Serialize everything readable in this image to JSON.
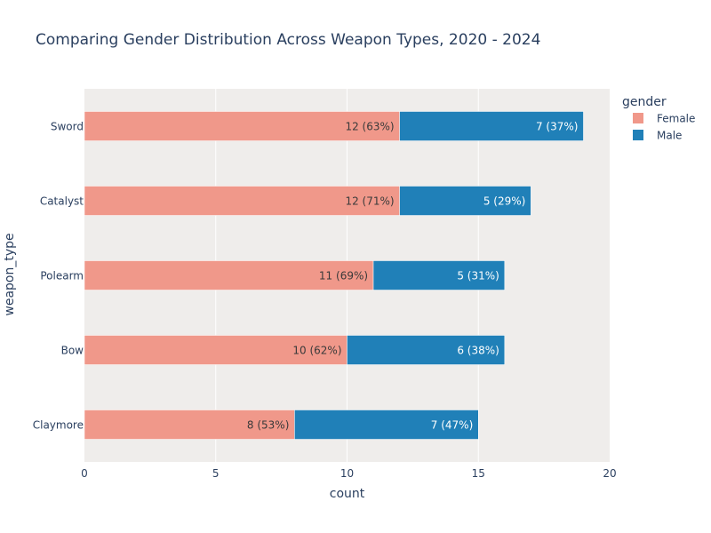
{
  "chart_data": {
    "type": "bar",
    "orientation": "horizontal",
    "barmode": "stack",
    "title": "Comparing Gender Distribution Across Weapon Types, 2020 - 2024",
    "xlabel": "count",
    "ylabel": "weapon_type",
    "xlim": [
      0,
      20
    ],
    "xticks": [
      "0",
      "5",
      "10",
      "15",
      "20"
    ],
    "categories": [
      "Sword",
      "Catalyst",
      "Polearm",
      "Bow",
      "Claymore"
    ],
    "series": [
      {
        "name": "Female",
        "color": "#f0988a",
        "text_color": "#3a3a3a",
        "values": [
          12,
          12,
          11,
          10,
          8
        ],
        "labels": [
          "12 (63%)",
          "12 (71%)",
          "11 (69%)",
          "10 (62%)",
          "8 (53%)"
        ]
      },
      {
        "name": "Male",
        "color": "#2080b8",
        "text_color": "#ffffff",
        "values": [
          7,
          5,
          5,
          6,
          7
        ],
        "labels": [
          "7 (37%)",
          "5 (29%)",
          "5 (31%)",
          "6 (38%)",
          "7 (47%)"
        ]
      }
    ],
    "legend": {
      "title": "gender",
      "position": "top-right"
    },
    "grid": true,
    "plot_bgcolor": "#efedeb"
  }
}
